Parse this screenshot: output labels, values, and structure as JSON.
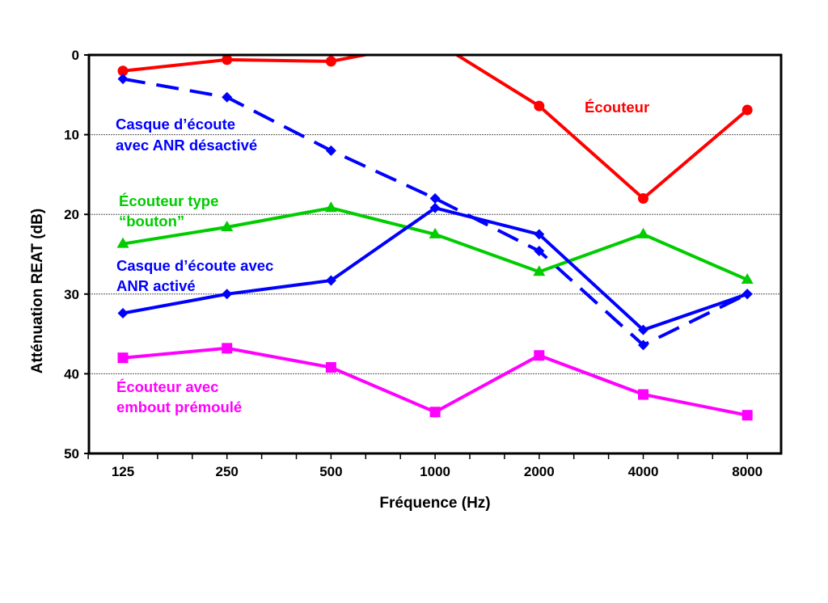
{
  "chart_data": {
    "type": "line",
    "title": "",
    "xlabel": "Fréquence (Hz)",
    "ylabel": "Atténuation REAT (dB)",
    "x_scale": "log2",
    "y_inverted": true,
    "categories": [
      "125",
      "250",
      "500",
      "1000",
      "2000",
      "4000",
      "8000"
    ],
    "x": [
      125,
      250,
      500,
      1000,
      2000,
      4000,
      8000
    ],
    "ylim": [
      0,
      50
    ],
    "yticks": [
      "0",
      "10",
      "20",
      "30",
      "40",
      "50"
    ],
    "ytick_values": [
      0,
      10,
      20,
      30,
      40,
      50
    ],
    "grid": "horizontal dotted at 10, 20, 30, 40",
    "series": [
      {
        "name": "Écouteur",
        "label_lines": [
          "Écouteur"
        ],
        "color": "#ff0000",
        "marker": "circle",
        "dash": "solid",
        "values": [
          2.0,
          0.6,
          0.8,
          -1.7,
          6.4,
          18.0,
          6.9
        ]
      },
      {
        "name": "Casque d’écoute avec ANR désactivé",
        "label_lines": [
          "Casque d’écoute",
          "avec ANR désactivé"
        ],
        "color": "#0000ff",
        "marker": "diamond",
        "dash": "dashed",
        "values": [
          3.0,
          5.3,
          12.0,
          18.0,
          24.6,
          36.4,
          30.0
        ]
      },
      {
        "name": "Écouteur type “bouton”",
        "label_lines": [
          "Écouteur type",
          "“bouton”"
        ],
        "color": "#00cc00",
        "marker": "triangle",
        "dash": "solid",
        "values": [
          23.7,
          21.6,
          19.2,
          22.5,
          27.2,
          22.5,
          28.2
        ]
      },
      {
        "name": "Casque d’écoute avec ANR activé",
        "label_lines": [
          "Casque d’écoute avec",
          "ANR activé"
        ],
        "color": "#0000ff",
        "marker": "diamond",
        "dash": "solid",
        "values": [
          32.4,
          30.0,
          28.3,
          19.2,
          22.5,
          34.5,
          30.0
        ]
      },
      {
        "name": "Écouteur avec embout prémoulé",
        "label_lines": [
          "Écouteur avec",
          "embout prémoulé"
        ],
        "color": "#ff00ff",
        "marker": "square",
        "dash": "solid",
        "values": [
          38.0,
          36.8,
          39.2,
          44.8,
          37.7,
          42.6,
          45.2
        ]
      }
    ]
  }
}
